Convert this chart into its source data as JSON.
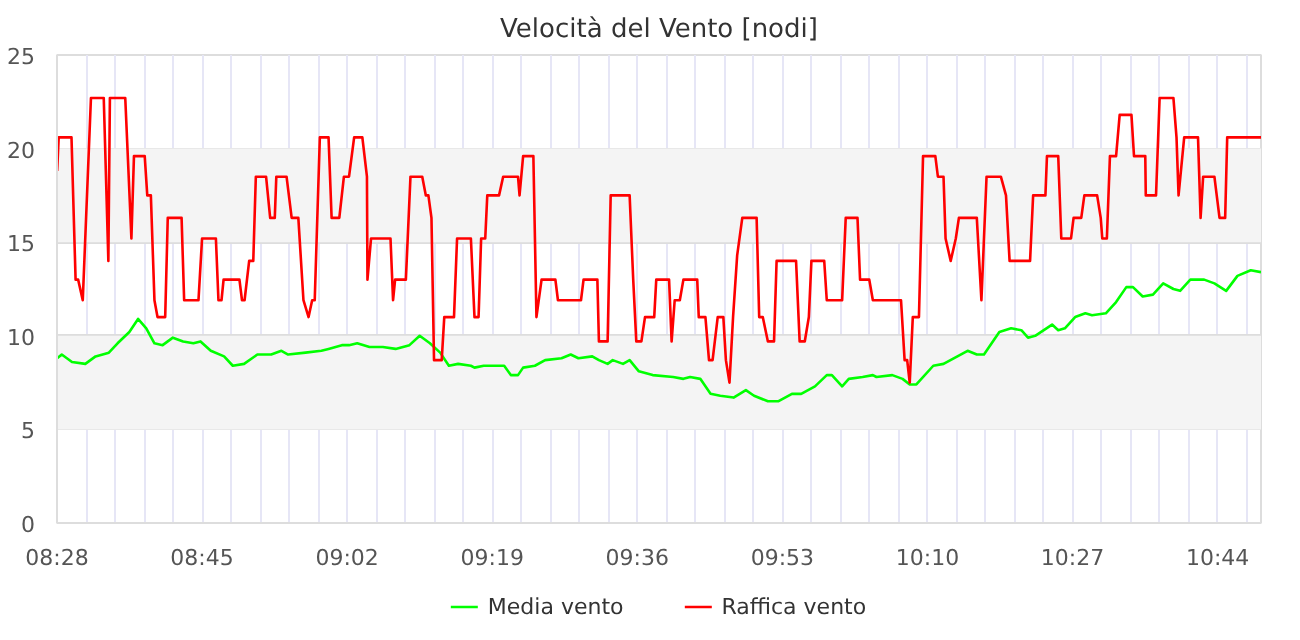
{
  "chart_data": {
    "type": "line",
    "title": "Velocità del Vento [nodi]",
    "xlim": [
      8.4667,
      10.818
    ],
    "ylim": [
      0,
      25
    ],
    "yticks": [
      0,
      5,
      10,
      15,
      20,
      25
    ],
    "xticks": [
      {
        "value": 8.4667,
        "label": "08:28"
      },
      {
        "value": 8.75,
        "label": "08:45"
      },
      {
        "value": 9.0333,
        "label": "09:02"
      },
      {
        "value": 9.3167,
        "label": "09:19"
      },
      {
        "value": 9.6,
        "label": "09:36"
      },
      {
        "value": 9.8833,
        "label": "09:53"
      },
      {
        "value": 10.1667,
        "label": "10:10"
      },
      {
        "value": 10.45,
        "label": "10:27"
      },
      {
        "value": 10.7333,
        "label": "10:44"
      }
    ],
    "grid": true,
    "legend": "bottom",
    "marker": "none",
    "line_style": "solid",
    "bands": [
      {
        "axis": "y",
        "from": 5,
        "to": 10,
        "color": "#f4f4f4"
      },
      {
        "axis": "y",
        "from": 15,
        "to": 20,
        "color": "#f4f4f4"
      }
    ],
    "series": [
      {
        "name": "Media vento",
        "color": "#00ff00",
        "x": [
          8.467,
          8.476,
          8.496,
          8.522,
          8.542,
          8.568,
          8.585,
          8.608,
          8.625,
          8.641,
          8.657,
          8.673,
          8.693,
          8.713,
          8.733,
          8.747,
          8.767,
          8.793,
          8.81,
          8.832,
          8.858,
          8.885,
          8.905,
          8.918,
          8.952,
          8.983,
          8.997,
          9.023,
          9.037,
          9.053,
          9.077,
          9.103,
          9.128,
          9.155,
          9.175,
          9.195,
          9.215,
          9.232,
          9.25,
          9.275,
          9.282,
          9.3,
          9.34,
          9.353,
          9.367,
          9.377,
          9.4,
          9.42,
          9.452,
          9.47,
          9.485,
          9.512,
          9.525,
          9.542,
          9.552,
          9.572,
          9.585,
          9.603,
          9.63,
          9.67,
          9.69,
          9.703,
          9.723,
          9.743,
          9.762,
          9.788,
          9.812,
          9.828,
          9.855,
          9.875,
          9.902,
          9.92,
          9.947,
          9.97,
          9.98,
          10.0,
          10.013,
          10.04,
          10.06,
          10.067,
          10.098,
          10.118,
          10.132,
          10.145,
          10.178,
          10.198,
          10.245,
          10.263,
          10.277,
          10.307,
          10.33,
          10.35,
          10.363,
          10.377,
          10.41,
          10.422,
          10.435,
          10.455,
          10.475,
          10.488,
          10.515,
          10.535,
          10.555,
          10.568,
          10.587,
          10.607,
          10.627,
          10.647,
          10.66,
          10.68,
          10.707,
          10.727,
          10.75,
          10.772,
          10.798,
          10.818
        ],
        "values": [
          8.8,
          9.0,
          8.6,
          8.5,
          8.9,
          9.1,
          9.6,
          10.2,
          10.9,
          10.4,
          9.6,
          9.5,
          9.9,
          9.7,
          9.6,
          9.7,
          9.2,
          8.9,
          8.4,
          8.5,
          9.0,
          9.0,
          9.2,
          9.0,
          9.1,
          9.2,
          9.3,
          9.5,
          9.5,
          9.6,
          9.4,
          9.4,
          9.3,
          9.5,
          10.0,
          9.6,
          9.1,
          8.4,
          8.5,
          8.4,
          8.3,
          8.4,
          8.4,
          7.9,
          7.9,
          8.3,
          8.4,
          8.7,
          8.8,
          9.0,
          8.8,
          8.9,
          8.7,
          8.5,
          8.7,
          8.5,
          8.7,
          8.1,
          7.9,
          7.8,
          7.7,
          7.8,
          7.7,
          6.9,
          6.8,
          6.7,
          7.1,
          6.8,
          6.5,
          6.5,
          6.9,
          6.9,
          7.3,
          7.9,
          7.9,
          7.3,
          7.7,
          7.8,
          7.9,
          7.8,
          7.9,
          7.7,
          7.4,
          7.4,
          8.4,
          8.5,
          9.2,
          9.0,
          9.0,
          10.2,
          10.4,
          10.3,
          9.9,
          10.0,
          10.6,
          10.3,
          10.4,
          11.0,
          11.2,
          11.1,
          11.2,
          11.8,
          12.6,
          12.6,
          12.1,
          12.2,
          12.8,
          12.5,
          12.4,
          13.0,
          13.0,
          12.8,
          12.4,
          13.2,
          13.5,
          13.4
        ]
      },
      {
        "name": "Raffica vento",
        "color": "#ff0000",
        "x": [
          8.467,
          8.47,
          8.495,
          8.503,
          8.508,
          8.517,
          8.533,
          8.558,
          8.567,
          8.57,
          8.6,
          8.612,
          8.617,
          8.638,
          8.643,
          8.65,
          8.657,
          8.663,
          8.678,
          8.683,
          8.71,
          8.715,
          8.743,
          8.75,
          8.777,
          8.782,
          8.788,
          8.792,
          8.823,
          8.828,
          8.833,
          8.842,
          8.85,
          8.855,
          8.875,
          8.883,
          8.892,
          8.895,
          8.915,
          8.925,
          8.938,
          8.948,
          8.958,
          8.965,
          8.97,
          8.98,
          8.997,
          9.003,
          9.018,
          9.027,
          9.037,
          9.047,
          9.063,
          9.072,
          9.073,
          9.08,
          9.118,
          9.123,
          9.127,
          9.148,
          9.157,
          9.18,
          9.187,
          9.192,
          9.198,
          9.203,
          9.218,
          9.223,
          9.242,
          9.248,
          9.275,
          9.282,
          9.29,
          9.295,
          9.303,
          9.307,
          9.33,
          9.338,
          9.367,
          9.37,
          9.377,
          9.397,
          9.403,
          9.413,
          9.44,
          9.445,
          9.49,
          9.495,
          9.522,
          9.525,
          9.542,
          9.548,
          9.585,
          9.592,
          9.598,
          9.608,
          9.615,
          9.633,
          9.637,
          9.662,
          9.667,
          9.673,
          9.683,
          9.69,
          9.717,
          9.72,
          9.733,
          9.74,
          9.747,
          9.757,
          9.768,
          9.773,
          9.78,
          9.787,
          9.795,
          9.805,
          9.833,
          9.838,
          9.845,
          9.855,
          9.867,
          9.872,
          9.91,
          9.917,
          9.927,
          9.935,
          9.94,
          9.965,
          9.97,
          10.0,
          10.007,
          10.03,
          10.035,
          10.053,
          10.06,
          10.115,
          10.122,
          10.127,
          10.132,
          10.138,
          10.15,
          10.158,
          10.182,
          10.187,
          10.198,
          10.202,
          10.212,
          10.222,
          10.228,
          10.263,
          10.272,
          10.282,
          10.31,
          10.32,
          10.327,
          10.367,
          10.373,
          10.397,
          10.4,
          10.422,
          10.428,
          10.447,
          10.452,
          10.467,
          10.473,
          10.498,
          10.505,
          10.508,
          10.517,
          10.523,
          10.535,
          10.542,
          10.565,
          10.57,
          10.592,
          10.593,
          10.613,
          10.62,
          10.647,
          10.653,
          10.657,
          10.668,
          10.695,
          10.7,
          10.705,
          10.727,
          10.737,
          10.748,
          10.752,
          10.818
        ],
        "values": [
          18.8,
          20.6,
          20.6,
          13.0,
          13.0,
          11.9,
          22.7,
          22.7,
          14.0,
          22.7,
          22.7,
          15.2,
          19.6,
          19.6,
          17.5,
          17.5,
          11.9,
          11.0,
          11.0,
          16.3,
          16.3,
          11.9,
          11.9,
          15.2,
          15.2,
          11.9,
          11.9,
          13.0,
          13.0,
          11.9,
          11.9,
          14.0,
          14.0,
          18.5,
          18.5,
          16.3,
          16.3,
          18.5,
          18.5,
          16.3,
          16.3,
          11.9,
          11.0,
          11.9,
          11.9,
          20.6,
          20.6,
          16.3,
          16.3,
          18.5,
          18.5,
          20.6,
          20.6,
          18.5,
          13.0,
          15.2,
          15.2,
          11.9,
          13.0,
          13.0,
          18.5,
          18.5,
          17.5,
          17.5,
          16.3,
          8.7,
          8.7,
          11.0,
          11.0,
          15.2,
          15.2,
          11.0,
          11.0,
          15.2,
          15.2,
          17.5,
          17.5,
          18.5,
          18.5,
          17.5,
          19.6,
          19.6,
          11.0,
          13.0,
          13.0,
          11.9,
          11.9,
          13.0,
          13.0,
          9.7,
          9.7,
          17.5,
          17.5,
          13.0,
          9.7,
          9.7,
          11.0,
          11.0,
          13.0,
          13.0,
          9.7,
          11.9,
          11.9,
          13.0,
          13.0,
          11.0,
          11.0,
          8.7,
          8.7,
          11.0,
          11.0,
          8.7,
          7.5,
          11.0,
          14.3,
          16.3,
          16.3,
          11.0,
          11.0,
          9.7,
          9.7,
          14.0,
          14.0,
          9.7,
          9.7,
          11.0,
          14.0,
          14.0,
          11.9,
          11.9,
          16.3,
          16.3,
          13.0,
          13.0,
          11.9,
          11.9,
          8.7,
          8.7,
          7.5,
          11.0,
          11.0,
          19.6,
          19.6,
          18.5,
          18.5,
          15.2,
          14.0,
          15.2,
          16.3,
          16.3,
          11.9,
          18.5,
          18.5,
          17.5,
          14.0,
          14.0,
          17.5,
          17.5,
          19.6,
          19.6,
          15.2,
          15.2,
          16.3,
          16.3,
          17.5,
          17.5,
          16.3,
          15.2,
          15.2,
          19.6,
          19.6,
          21.8,
          21.8,
          19.6,
          19.6,
          17.5,
          17.5,
          22.7,
          22.7,
          20.6,
          17.5,
          20.6,
          20.6,
          16.3,
          18.5,
          18.5,
          16.3,
          16.3,
          20.6,
          20.6
        ]
      }
    ]
  }
}
